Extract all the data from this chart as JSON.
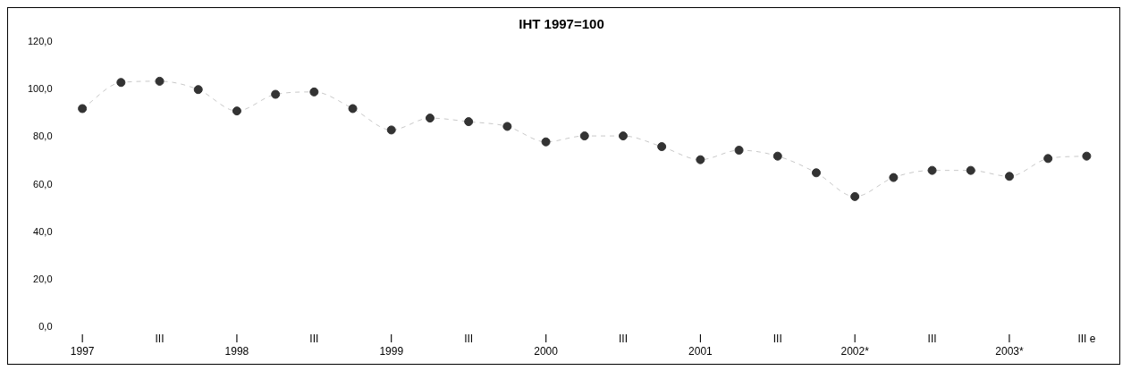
{
  "chart_data": {
    "type": "line",
    "title": "IHT 1997=100",
    "categories": [
      "I\n1997",
      null,
      "III",
      null,
      "I\n1998",
      null,
      "III",
      null,
      "I\n1999",
      null,
      "III",
      null,
      "I\n2000",
      null,
      "III",
      null,
      "I\n2001",
      null,
      "III",
      null,
      "I\n2002*",
      null,
      "III",
      null,
      "I\n2003*",
      null,
      "III e"
    ],
    "series": [
      {
        "color": "#333333",
        "values": [
          92,
          103,
          103.5,
          100,
          91,
          98,
          99,
          92,
          83,
          88,
          86.5,
          84.5,
          78,
          80.5,
          80.5,
          76,
          70.5,
          74.5,
          72,
          65,
          55,
          63,
          66,
          66,
          63.5,
          71,
          72
        ]
      }
    ],
    "ylim": [
      0,
      120
    ],
    "yticks": [
      {
        "value": 0,
        "label": "0,0"
      },
      {
        "value": 20,
        "label": "20,0"
      },
      {
        "value": 40,
        "label": "40,0"
      },
      {
        "value": 60,
        "label": "60,0"
      },
      {
        "value": 80,
        "label": "80,0"
      },
      {
        "value": 100,
        "label": "100,0"
      },
      {
        "value": 120,
        "label": "120,0"
      }
    ],
    "grid": false,
    "legend": false,
    "marker": "circle",
    "line_style": "dashed"
  }
}
